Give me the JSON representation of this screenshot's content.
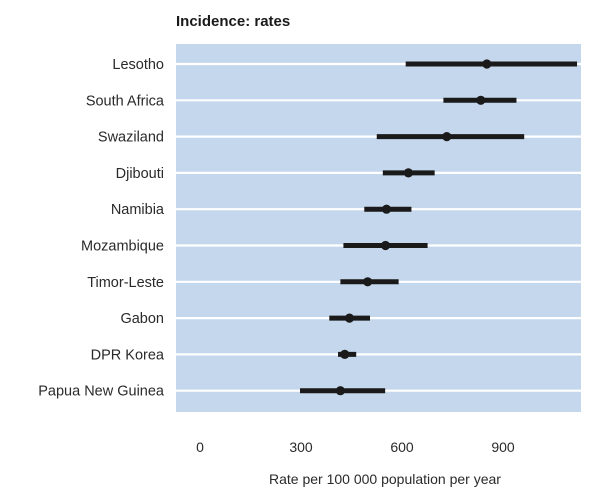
{
  "chart_data": {
    "type": "forest",
    "title": "Incidence: rates",
    "xlabel": "Rate per 100 000 population per year",
    "xlim": [
      -30,
      1140
    ],
    "xticks": [
      0,
      300,
      600,
      900
    ],
    "grid": "horizontal",
    "colors": {
      "background": "#c5d7ed",
      "gridline": "#ffffff",
      "mark": "#1a1a1a"
    },
    "categories": [
      "Lesotho",
      "South Africa",
      "Swaziland",
      "Djibouti",
      "Namibia",
      "Mozambique",
      "Timor-Leste",
      "Gabon",
      "DPR Korea",
      "Papua New Guinea"
    ],
    "estimates": [
      852,
      834,
      733,
      619,
      554,
      551,
      498,
      444,
      430,
      417
    ],
    "lower": [
      611,
      723,
      525,
      543,
      488,
      426,
      417,
      384,
      410,
      297
    ],
    "upper": [
      1120,
      940,
      963,
      697,
      628,
      676,
      590,
      505,
      464,
      550
    ]
  }
}
